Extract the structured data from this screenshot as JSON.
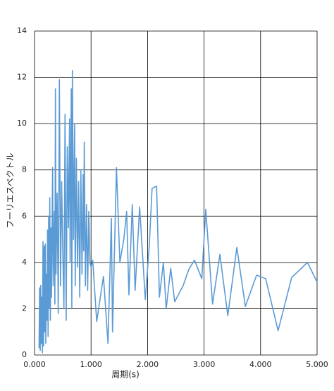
{
  "chart_data": {
    "type": "line",
    "y_label": "フーリエスペクトル",
    "x_label": "周期(s)",
    "color": "#5b9bd5",
    "grid": true,
    "xlim": [
      0,
      5
    ],
    "ylim": [
      0,
      14
    ],
    "xticks": [
      {
        "value": 0,
        "label": "0.000"
      },
      {
        "value": 1,
        "label": "1.000"
      },
      {
        "value": 2,
        "label": "2.000"
      },
      {
        "value": 3,
        "label": "3.000"
      },
      {
        "value": 4,
        "label": "4.000"
      },
      {
        "value": 5,
        "label": "5.000"
      }
    ],
    "yticks": [
      0,
      2,
      4,
      6,
      8,
      10,
      12,
      14
    ],
    "x": [
      0.08,
      0.09,
      0.1,
      0.11,
      0.12,
      0.13,
      0.14,
      0.15,
      0.16,
      0.17,
      0.18,
      0.19,
      0.2,
      0.21,
      0.22,
      0.23,
      0.24,
      0.25,
      0.26,
      0.27,
      0.28,
      0.29,
      0.3,
      0.32,
      0.33,
      0.35,
      0.36,
      0.37,
      0.38,
      0.4,
      0.42,
      0.44,
      0.46,
      0.48,
      0.5,
      0.52,
      0.54,
      0.56,
      0.58,
      0.6,
      0.62,
      0.63,
      0.65,
      0.66,
      0.67,
      0.69,
      0.71,
      0.72,
      0.74,
      0.76,
      0.78,
      0.8,
      0.82,
      0.84,
      0.86,
      0.87,
      0.88,
      0.9,
      0.92,
      0.94,
      0.96,
      0.98,
      1.0,
      1.03,
      1.1,
      1.22,
      1.3,
      1.36,
      1.38,
      1.45,
      1.51,
      1.58,
      1.63,
      1.67,
      1.73,
      1.78,
      1.86,
      1.96,
      2.03,
      2.08,
      2.16,
      2.21,
      2.28,
      2.33,
      2.41,
      2.48,
      2.63,
      2.73,
      2.83,
      2.96,
      3.03,
      3.15,
      3.28,
      3.42,
      3.58,
      3.73,
      3.93,
      4.09,
      4.31,
      4.55,
      4.83,
      5.0
    ],
    "values": [
      0.3,
      2.9,
      0.2,
      3.0,
      0.5,
      2.5,
      0.1,
      4.9,
      0.4,
      4.7,
      1.0,
      4.8,
      0.5,
      3.5,
      1.5,
      5.4,
      0.8,
      6.0,
      2.0,
      6.8,
      1.5,
      5.5,
      2.5,
      8.1,
      3.0,
      6.2,
      2.2,
      11.5,
      3.5,
      7.0,
      1.8,
      11.9,
      3.0,
      7.5,
      4.5,
      2.0,
      10.4,
      1.5,
      9.0,
      5.5,
      10.2,
      4.0,
      11.5,
      2.0,
      12.3,
      5.0,
      10.0,
      3.0,
      8.5,
      3.8,
      7.5,
      2.5,
      8.0,
      3.5,
      7.8,
      4.5,
      9.2,
      3.0,
      6.5,
      2.8,
      6.2,
      4.0,
      3.8,
      4.1,
      1.45,
      3.4,
      0.5,
      5.9,
      1.0,
      8.1,
      4.0,
      5.0,
      6.2,
      2.6,
      6.5,
      2.8,
      6.4,
      2.4,
      4.7,
      7.2,
      7.3,
      2.5,
      4.0,
      2.0,
      3.75,
      2.3,
      3.0,
      3.7,
      4.1,
      3.3,
      6.3,
      2.2,
      4.35,
      1.7,
      4.65,
      2.1,
      3.45,
      3.3,
      1.05,
      3.35,
      4.0,
      3.15
    ]
  }
}
